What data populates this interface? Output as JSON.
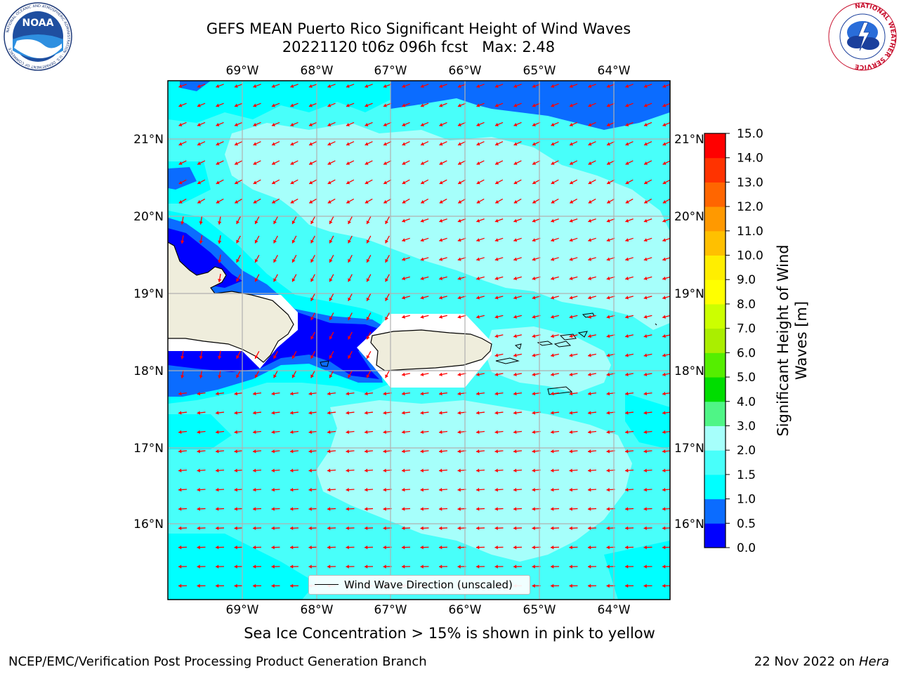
{
  "title": {
    "line1": "GEFS MEAN Puerto Rico Significant Height of Wind Waves",
    "line2": "20221120 t06z 096h fcst   Max: 2.48"
  },
  "map": {
    "lon_ticks": [
      "69°W",
      "68°W",
      "67°W",
      "66°W",
      "65°W",
      "64°W"
    ],
    "lat_ticks": [
      "21°N",
      "20°N",
      "19°N",
      "18°N",
      "17°N",
      "16°N"
    ],
    "legend_label": "Wind Wave Direction (unscaled)",
    "colors": {
      "land": "#efeddc",
      "arrow": "#ff0000",
      "grid": "#b0b0b0"
    }
  },
  "colorbar": {
    "label": "Significant Height of Wind Waves [m]",
    "ticks": [
      "0.0",
      "0.5",
      "1.0",
      "1.5",
      "2.0",
      "3.0",
      "4.0",
      "5.0",
      "6.0",
      "7.0",
      "8.0",
      "9.0",
      "10.0",
      "11.0",
      "12.0",
      "13.0",
      "14.0",
      "15.0"
    ],
    "colors": [
      "#0000ff",
      "#0b6cff",
      "#00ffff",
      "#48fffa",
      "#a6fffb",
      "#4ff586",
      "#00dd00",
      "#55ee00",
      "#aaee00",
      "#ccff00",
      "#ffff00",
      "#ffee00",
      "#ffc000",
      "#ff9900",
      "#ff6600",
      "#ff3300",
      "#ff0000"
    ]
  },
  "subtitle": "Sea Ice Concentration > 15% is shown in pink to yellow",
  "footer": {
    "left": "NCEP/EMC/Verification Post Processing Product Generation Branch",
    "right_date": "22 Nov 2022 on",
    "right_machine": "Hera"
  },
  "logos": {
    "noaa_text": "NOAA",
    "noaa_ring": "NATIONAL OCEANIC AND ATMOSPHERIC ADMINISTRATION · U.S. DEPARTMENT OF COMMERCE",
    "nws_ring": "NATIONAL WEATHER SERVICE"
  }
}
